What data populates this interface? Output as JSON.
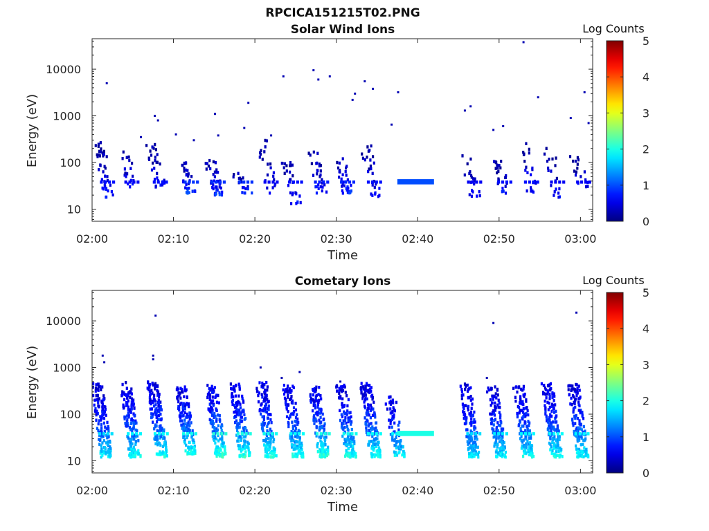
{
  "figure_title": "RPCICA151215T02.PNG",
  "chart_data": [
    {
      "type": "heatmap",
      "title": "Solar Wind Ions",
      "xlabel": "Time",
      "ylabel": "Energy (eV)",
      "x_ticks": [
        "02:00",
        "02:10",
        "02:20",
        "02:30",
        "02:40",
        "02:50",
        "03:00"
      ],
      "xlim_minutes": [
        0,
        61.5
      ],
      "y_scale": "log",
      "ylim": [
        5.5,
        45000
      ],
      "y_ticks": [
        10,
        100,
        1000,
        10000
      ],
      "y_tick_labels": [
        "10",
        "100",
        "1000",
        "10000"
      ],
      "colorbar_label": "Log Counts",
      "colorbar_ticks": [
        "0",
        "1",
        "2",
        "3",
        "4",
        "5"
      ],
      "colorbar_range": [
        0,
        5
      ],
      "colormap": "jet",
      "grid": false,
      "blobs": [
        {
          "t": 1.7,
          "e_low": 18,
          "e_high": 270,
          "n": 40,
          "lvl": 0.12
        },
        {
          "t": 4.7,
          "e_low": 30,
          "e_high": 300,
          "n": 18,
          "lvl": 0.1
        },
        {
          "t": 8.2,
          "e_low": 22,
          "e_high": 250,
          "n": 30,
          "lvl": 0.12
        },
        {
          "t": 12.0,
          "e_low": 22,
          "e_high": 100,
          "n": 30,
          "lvl": 0.15
        },
        {
          "t": 15.3,
          "e_low": 20,
          "e_high": 120,
          "n": 40,
          "lvl": 0.15
        },
        {
          "t": 18.7,
          "e_low": 22,
          "e_high": 60,
          "n": 18,
          "lvl": 0.15
        },
        {
          "t": 21.8,
          "e_low": 22,
          "e_high": 300,
          "n": 22,
          "lvl": 0.1
        },
        {
          "t": 24.8,
          "e_low": 12,
          "e_high": 120,
          "n": 28,
          "lvl": 0.12
        },
        {
          "t": 28.0,
          "e_low": 22,
          "e_high": 200,
          "n": 30,
          "lvl": 0.13
        },
        {
          "t": 31.2,
          "e_low": 22,
          "e_high": 140,
          "n": 32,
          "lvl": 0.14
        },
        {
          "t": 34.5,
          "e_low": 18,
          "e_high": 250,
          "n": 28,
          "lvl": 0.12
        },
        {
          "t": 46.8,
          "e_low": 18,
          "e_high": 150,
          "n": 20,
          "lvl": 0.1
        },
        {
          "t": 50.5,
          "e_low": 22,
          "e_high": 120,
          "n": 24,
          "lvl": 0.12
        },
        {
          "t": 53.8,
          "e_low": 22,
          "e_high": 300,
          "n": 24,
          "lvl": 0.12
        },
        {
          "t": 57.0,
          "e_low": 18,
          "e_high": 220,
          "n": 20,
          "lvl": 0.1
        },
        {
          "t": 60.2,
          "e_low": 30,
          "e_high": 150,
          "n": 20,
          "lvl": 0.1
        }
      ],
      "bands": [
        {
          "t0": 37.5,
          "t1": 42.0,
          "e_low": 34,
          "e_high": 44,
          "lvl": 0.2
        }
      ],
      "dots": [
        {
          "t": 1.8,
          "e": 5000
        },
        {
          "t": 7.7,
          "e": 1000
        },
        {
          "t": 8.1,
          "e": 800
        },
        {
          "t": 15.1,
          "e": 1100
        },
        {
          "t": 18.7,
          "e": 550
        },
        {
          "t": 19.2,
          "e": 1900
        },
        {
          "t": 23.5,
          "e": 7000
        },
        {
          "t": 27.2,
          "e": 9500
        },
        {
          "t": 27.8,
          "e": 6000
        },
        {
          "t": 29.2,
          "e": 7000
        },
        {
          "t": 32.0,
          "e": 2200
        },
        {
          "t": 32.3,
          "e": 3000
        },
        {
          "t": 33.5,
          "e": 5500
        },
        {
          "t": 34.5,
          "e": 3800
        },
        {
          "t": 37.6,
          "e": 3200
        },
        {
          "t": 45.8,
          "e": 1300
        },
        {
          "t": 46.5,
          "e": 1600
        },
        {
          "t": 49.3,
          "e": 500
        },
        {
          "t": 50.5,
          "e": 600
        },
        {
          "t": 54.8,
          "e": 2500
        },
        {
          "t": 53.0,
          "e": 38000
        },
        {
          "t": 58.8,
          "e": 900
        },
        {
          "t": 60.5,
          "e": 3200
        },
        {
          "t": 61.0,
          "e": 700
        },
        {
          "t": 6.0,
          "e": 350
        },
        {
          "t": 10.3,
          "e": 400
        },
        {
          "t": 12.5,
          "e": 300
        },
        {
          "t": 15.5,
          "e": 380
        },
        {
          "t": 22.0,
          "e": 380
        },
        {
          "t": 36.8,
          "e": 650
        }
      ]
    },
    {
      "type": "heatmap",
      "title": "Cometary Ions",
      "xlabel": "Time",
      "ylabel": "Energy (eV)",
      "x_ticks": [
        "02:00",
        "02:10",
        "02:20",
        "02:30",
        "02:40",
        "02:50",
        "03:00"
      ],
      "xlim_minutes": [
        0,
        61.5
      ],
      "y_scale": "log",
      "ylim": [
        5.5,
        45000
      ],
      "y_ticks": [
        10,
        100,
        1000,
        10000
      ],
      "y_tick_labels": [
        "10",
        "100",
        "1000",
        "10000"
      ],
      "colorbar_label": "Log Counts",
      "colorbar_ticks": [
        "0",
        "1",
        "2",
        "3",
        "4",
        "5"
      ],
      "colorbar_range": [
        0,
        5
      ],
      "colormap": "jet",
      "grid": false,
      "blobs": [
        {
          "t": 1.5,
          "e_low": 12,
          "e_high": 450,
          "n": 150,
          "lvl": 0.3
        },
        {
          "t": 5.0,
          "e_low": 12,
          "e_high": 480,
          "n": 150,
          "lvl": 0.32
        },
        {
          "t": 8.3,
          "e_low": 12,
          "e_high": 500,
          "n": 160,
          "lvl": 0.33
        },
        {
          "t": 11.8,
          "e_low": 14,
          "e_high": 400,
          "n": 140,
          "lvl": 0.34
        },
        {
          "t": 15.5,
          "e_low": 12,
          "e_high": 420,
          "n": 150,
          "lvl": 0.36
        },
        {
          "t": 18.5,
          "e_low": 12,
          "e_high": 450,
          "n": 150,
          "lvl": 0.35
        },
        {
          "t": 21.7,
          "e_low": 12,
          "e_high": 480,
          "n": 150,
          "lvl": 0.34
        },
        {
          "t": 25.0,
          "e_low": 12,
          "e_high": 420,
          "n": 140,
          "lvl": 0.33
        },
        {
          "t": 28.2,
          "e_low": 12,
          "e_high": 400,
          "n": 140,
          "lvl": 0.35
        },
        {
          "t": 31.5,
          "e_low": 12,
          "e_high": 420,
          "n": 140,
          "lvl": 0.34
        },
        {
          "t": 34.5,
          "e_low": 12,
          "e_high": 480,
          "n": 160,
          "lvl": 0.33
        },
        {
          "t": 37.5,
          "e_low": 12,
          "e_high": 250,
          "n": 80,
          "lvl": 0.32
        },
        {
          "t": 46.7,
          "e_low": 12,
          "e_high": 450,
          "n": 150,
          "lvl": 0.3
        },
        {
          "t": 50.0,
          "e_low": 12,
          "e_high": 400,
          "n": 140,
          "lvl": 0.31
        },
        {
          "t": 53.3,
          "e_low": 12,
          "e_high": 420,
          "n": 140,
          "lvl": 0.32
        },
        {
          "t": 56.8,
          "e_low": 12,
          "e_high": 450,
          "n": 150,
          "lvl": 0.33
        },
        {
          "t": 60.0,
          "e_low": 12,
          "e_high": 450,
          "n": 150,
          "lvl": 0.32
        }
      ],
      "bands": [
        {
          "t0": 37.5,
          "t1": 42.0,
          "e_low": 34,
          "e_high": 44,
          "lvl": 0.4
        }
      ],
      "dots": [
        {
          "t": 1.3,
          "e": 1800
        },
        {
          "t": 1.5,
          "e": 1300
        },
        {
          "t": 7.5,
          "e": 1800
        },
        {
          "t": 7.8,
          "e": 13000
        },
        {
          "t": 7.5,
          "e": 1500
        },
        {
          "t": 20.7,
          "e": 1000
        },
        {
          "t": 49.3,
          "e": 9000
        },
        {
          "t": 59.5,
          "e": 15000
        },
        {
          "t": 25.5,
          "e": 800
        },
        {
          "t": 23.3,
          "e": 600
        },
        {
          "t": 30.5,
          "e": 500
        },
        {
          "t": 48.5,
          "e": 600
        }
      ]
    }
  ]
}
